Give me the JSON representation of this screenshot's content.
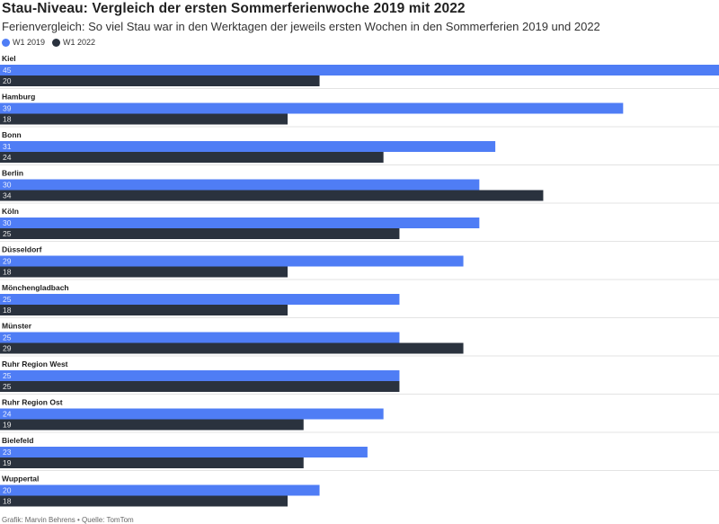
{
  "header": {
    "title": "Stau-Niveau: Vergleich der ersten Sommerferienwoche 2019 mit 2022",
    "subtitle": "Ferienvergleich: So viel Stau war in den Werktagen der jeweils ersten Wochen in den Sommerferien 2019 und 2022"
  },
  "legend": [
    {
      "label": "W1 2019",
      "color": "#4f7df5"
    },
    {
      "label": "W1 2022",
      "color": "#2a323e"
    }
  ],
  "footer": "Grafik: Marvin Behrens • Quelle: TomTom",
  "chart_data": {
    "type": "bar",
    "orientation": "horizontal",
    "categories": [
      "Kiel",
      "Hamburg",
      "Bonn",
      "Berlin",
      "Köln",
      "Düsseldorf",
      "Mönchengladbach",
      "Münster",
      "Ruhr Region West",
      "Ruhr Region Ost",
      "Bielefeld",
      "Wuppertal"
    ],
    "series": [
      {
        "name": "W1 2019",
        "color": "#4f7df5",
        "values": [
          45,
          39,
          31,
          30,
          30,
          29,
          25,
          25,
          25,
          24,
          23,
          20
        ]
      },
      {
        "name": "W1 2022",
        "color": "#2a323e",
        "values": [
          20,
          18,
          24,
          34,
          25,
          18,
          18,
          29,
          25,
          19,
          19,
          18
        ]
      }
    ],
    "xlim": [
      0,
      45
    ],
    "grid": false,
    "legend_position": "top-left"
  }
}
